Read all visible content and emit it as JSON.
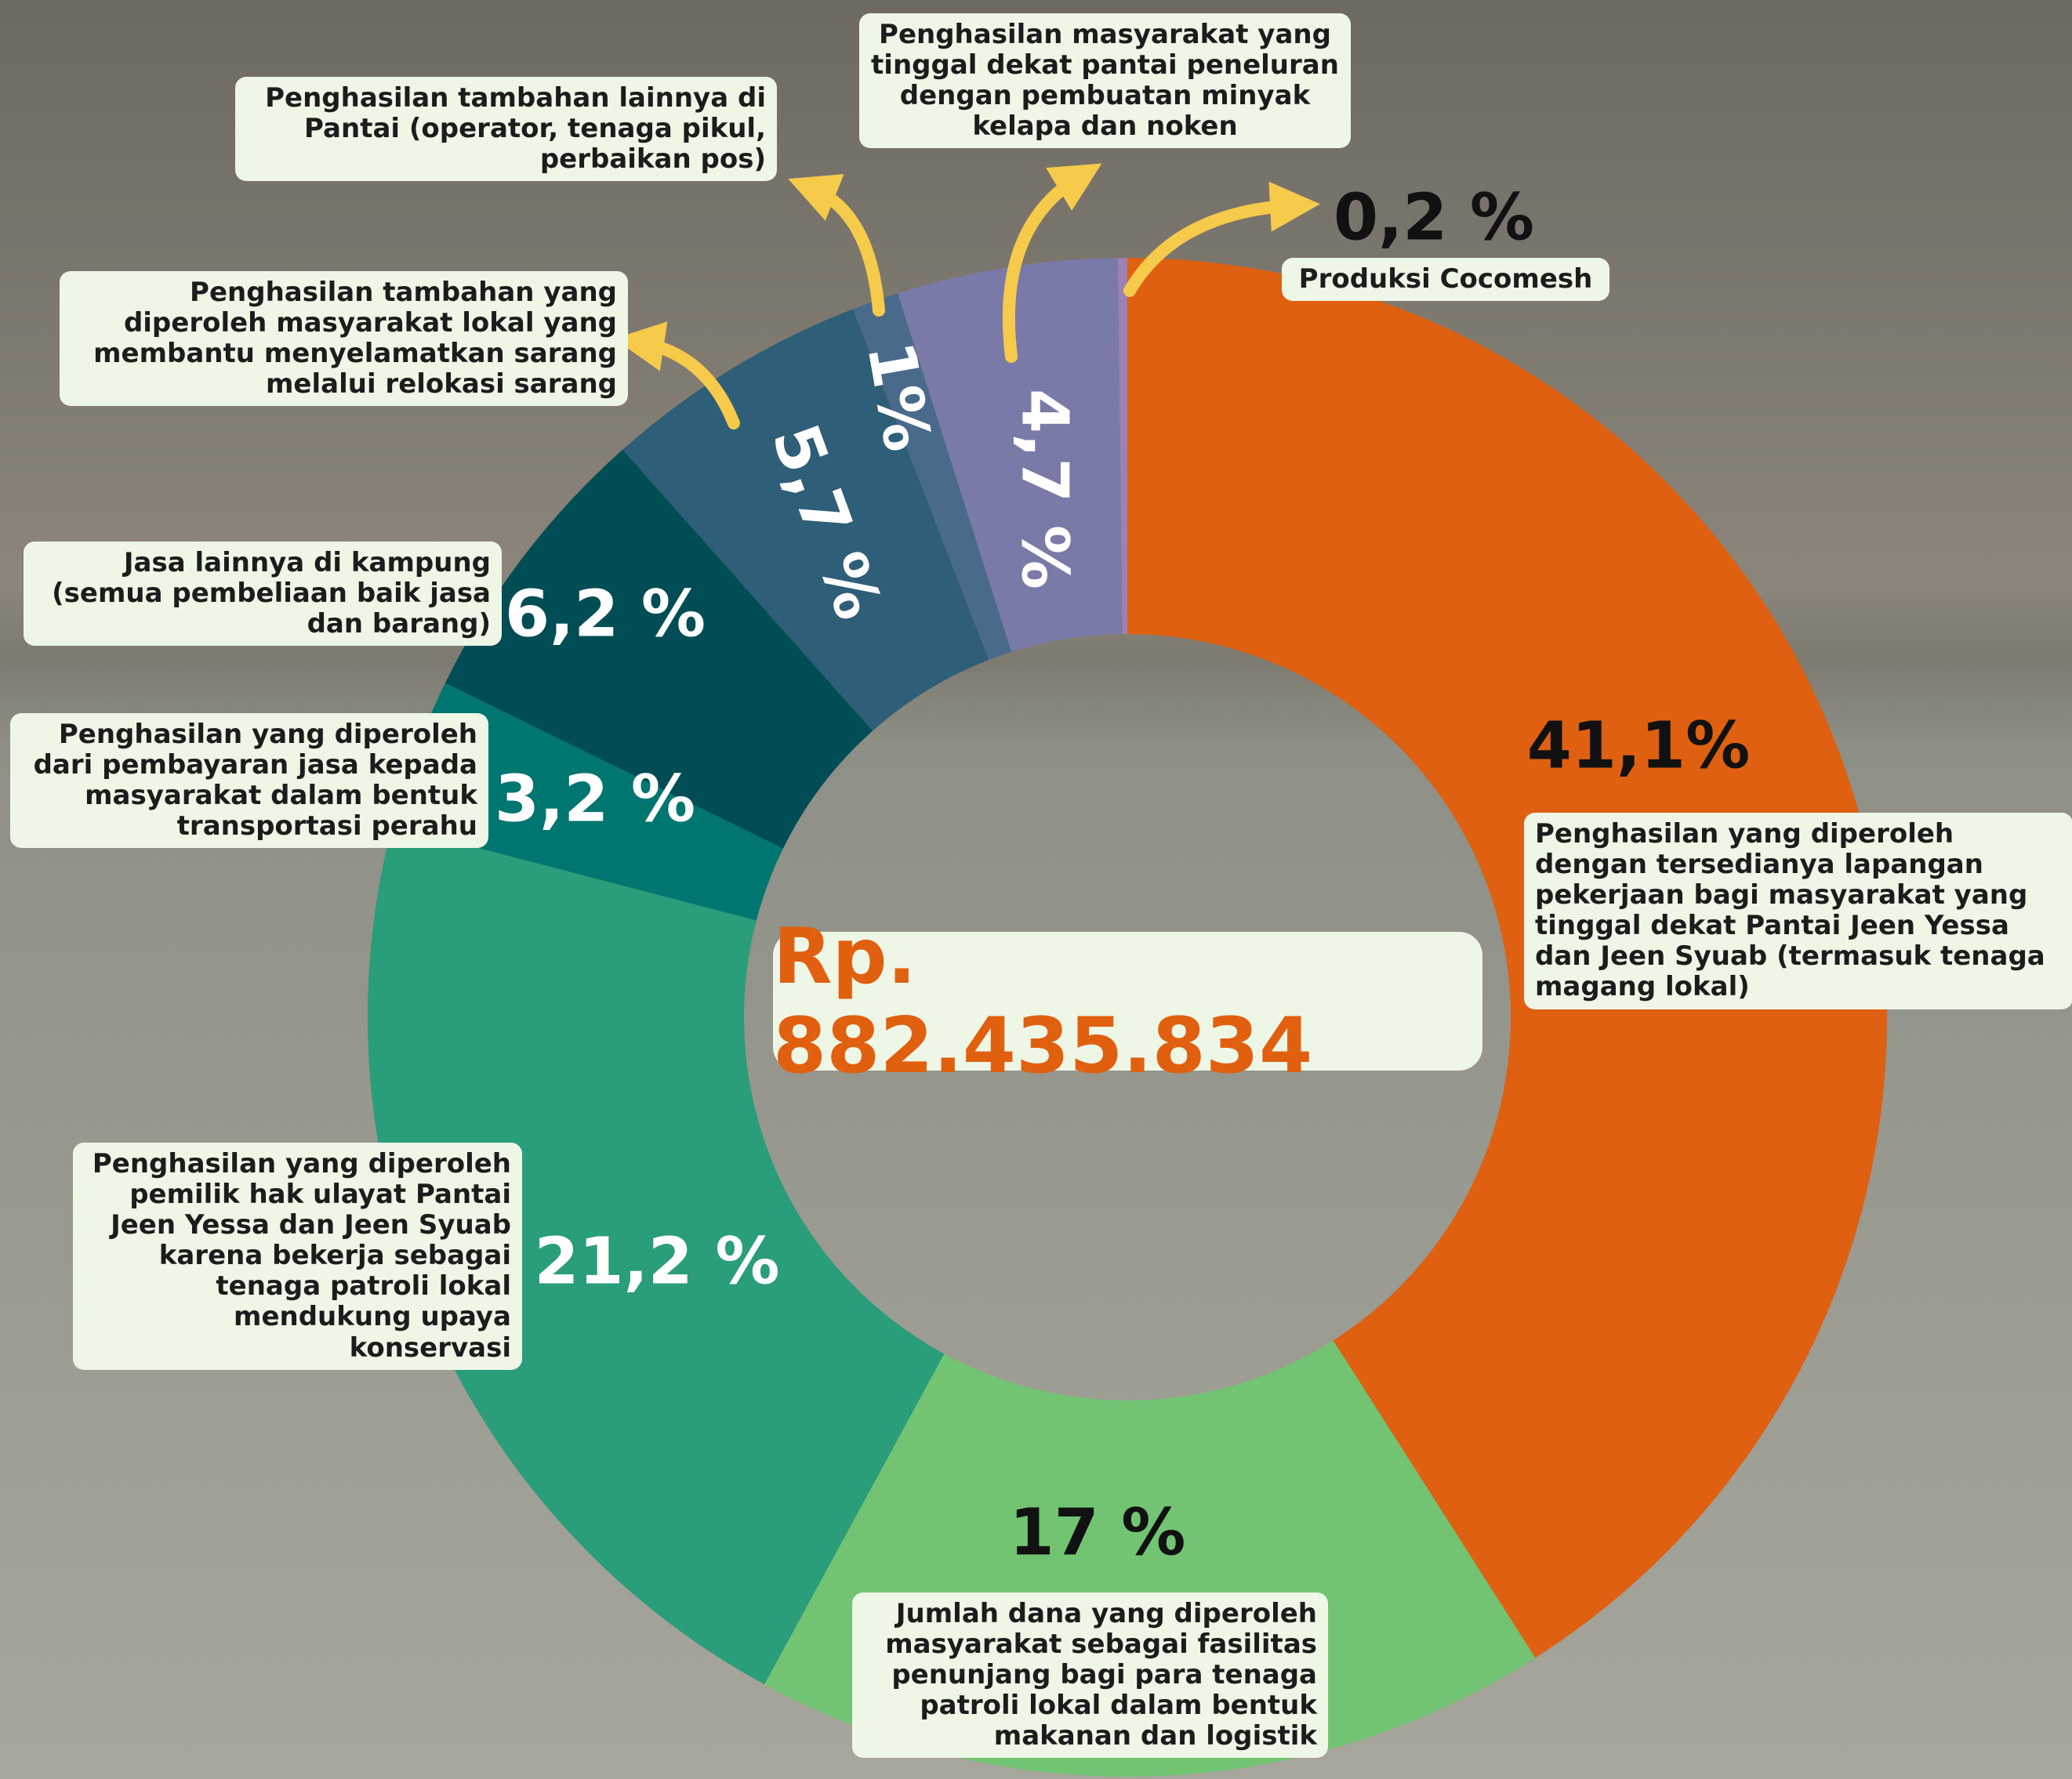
{
  "chart_data": {
    "type": "donut",
    "center_label": "Rp. 882.435.834",
    "categories": [
      "Penghasilan yang diperoleh dengan tersedianya lapangan pekerjaan bagi masyarakat yang tinggal dekat Pantai Jeen Yessa dan Jeen Syuab (termasuk tenaga magang lokal)",
      "Jumlah dana yang diperoleh masyarakat sebagai fasilitas penunjang bagi para tenaga patroli lokal dalam bentuk makanan dan logistik",
      "Penghasilan yang diperoleh pemilik hak ulayat Pantai Jeen Yessa dan Jeen Syuab karena bekerja sebagai tenaga patroli lokal mendukung upaya konservasi",
      "Penghasilan yang diperoleh dari pembayaran jasa kepada masyarakat dalam bentuk transportasi perahu",
      "Jasa lainnya di kampung (semua pembeliaan baik jasa dan barang)",
      "Penghasilan tambahan yang diperoleh masyarakat lokal yang membantu menyelamatkan sarang melalui relokasi sarang",
      "Penghasilan tambahan lainnya di Pantai (operator, tenaga pikul, perbaikan pos)",
      "Penghasilan masyarakat yang tinggal dekat pantai peneluran dengan pembuatan minyak kelapa dan noken",
      "Produksi Cocomesh"
    ],
    "values": [
      41.1,
      17,
      21.2,
      3.2,
      6.2,
      5.7,
      1,
      4.7,
      0.2
    ],
    "value_labels": [
      "41,1%",
      "17 %",
      "21,2 %",
      "3,2 %",
      "6,2 %",
      "5,7 %",
      "1%",
      "4,7 %",
      "0,2 %"
    ],
    "colors": [
      "#de6010",
      "#72c472",
      "#2a9d7a",
      "#007670",
      "#004d55",
      "#2e5e78",
      "#4a6a8c",
      "#7a7aa8",
      "#9a82b4"
    ]
  }
}
